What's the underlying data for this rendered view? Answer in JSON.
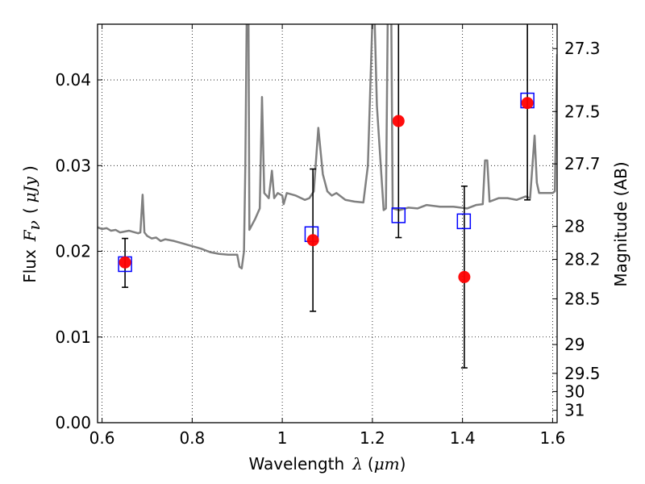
{
  "chart_data": {
    "type": "scatter",
    "xlabel": {
      "prefix": "Wavelength",
      "symbol": "λ",
      "open": "(",
      "unit": "μm",
      "close": ")"
    },
    "ylabel": {
      "prefix": "Flux",
      "symbol": "F",
      "subscript": "ν",
      "open": "(",
      "unit": "μJy",
      "close": ")"
    },
    "y2label": "Magnitude (AB)",
    "xlim": [
      0.59,
      1.61
    ],
    "ylim": [
      0.0,
      0.0465
    ],
    "grid": true,
    "x_ticks": [
      {
        "value": 0.6,
        "label": "0.6"
      },
      {
        "value": 0.8,
        "label": "0.8"
      },
      {
        "value": 1.0,
        "label": "1"
      },
      {
        "value": 1.2,
        "label": "1.2"
      },
      {
        "value": 1.4,
        "label": "1.4"
      },
      {
        "value": 1.6,
        "label": "1.6"
      }
    ],
    "y_ticks": [
      {
        "value": 0.0,
        "label": "0.00"
      },
      {
        "value": 0.01,
        "label": "0.01"
      },
      {
        "value": 0.02,
        "label": "0.02"
      },
      {
        "value": 0.03,
        "label": "0.03"
      },
      {
        "value": 0.04,
        "label": "0.04"
      }
    ],
    "y2_ticks": [
      {
        "mag": 27.3,
        "label": "27.3"
      },
      {
        "mag": 27.5,
        "label": "27.5"
      },
      {
        "mag": 27.7,
        "label": "27.7"
      },
      {
        "mag": 28.0,
        "label": "28"
      },
      {
        "mag": 28.2,
        "label": "28.2"
      },
      {
        "mag": 28.5,
        "label": "28.5"
      },
      {
        "mag": 29.0,
        "label": "29"
      },
      {
        "mag": 29.5,
        "label": "29.5"
      },
      {
        "mag": 30.0,
        "label": "30"
      },
      {
        "mag": 31.0,
        "label": "31"
      }
    ],
    "series": [
      {
        "name": "template spectrum",
        "kind": "line",
        "color": "#808080",
        "points": [
          [
            0.59,
            0.0228
          ],
          [
            0.6,
            0.0226
          ],
          [
            0.61,
            0.0227
          ],
          [
            0.62,
            0.0224
          ],
          [
            0.63,
            0.0225
          ],
          [
            0.64,
            0.0222
          ],
          [
            0.66,
            0.0224
          ],
          [
            0.68,
            0.0221
          ],
          [
            0.685,
            0.0222
          ],
          [
            0.69,
            0.0266
          ],
          [
            0.694,
            0.0222
          ],
          [
            0.7,
            0.0218
          ],
          [
            0.71,
            0.0215
          ],
          [
            0.72,
            0.0216
          ],
          [
            0.73,
            0.0212
          ],
          [
            0.74,
            0.0214
          ],
          [
            0.76,
            0.0212
          ],
          [
            0.78,
            0.0209
          ],
          [
            0.8,
            0.0206
          ],
          [
            0.82,
            0.0203
          ],
          [
            0.84,
            0.0199
          ],
          [
            0.86,
            0.0197
          ],
          [
            0.88,
            0.0196
          ],
          [
            0.9,
            0.0196
          ],
          [
            0.905,
            0.0182
          ],
          [
            0.91,
            0.018
          ],
          [
            0.915,
            0.02
          ],
          [
            0.918,
            0.03
          ],
          [
            0.921,
            0.047
          ],
          [
            0.925,
            0.047
          ],
          [
            0.927,
            0.0225
          ],
          [
            0.94,
            0.0238
          ],
          [
            0.95,
            0.025
          ],
          [
            0.955,
            0.038
          ],
          [
            0.96,
            0.0268
          ],
          [
            0.97,
            0.0262
          ],
          [
            0.977,
            0.0294
          ],
          [
            0.982,
            0.0262
          ],
          [
            0.99,
            0.0268
          ],
          [
            1.0,
            0.0265
          ],
          [
            1.003,
            0.0255
          ],
          [
            1.01,
            0.0268
          ],
          [
            1.03,
            0.0265
          ],
          [
            1.05,
            0.026
          ],
          [
            1.06,
            0.0262
          ],
          [
            1.07,
            0.027
          ],
          [
            1.08,
            0.0344
          ],
          [
            1.09,
            0.029
          ],
          [
            1.1,
            0.027
          ],
          [
            1.11,
            0.0265
          ],
          [
            1.12,
            0.0268
          ],
          [
            1.14,
            0.026
          ],
          [
            1.16,
            0.0258
          ],
          [
            1.18,
            0.0257
          ],
          [
            1.19,
            0.03
          ],
          [
            1.2,
            0.047
          ],
          [
            1.205,
            0.047
          ],
          [
            1.21,
            0.037
          ],
          [
            1.225,
            0.0248
          ],
          [
            1.23,
            0.025
          ],
          [
            1.234,
            0.047
          ],
          [
            1.242,
            0.047
          ],
          [
            1.245,
            0.025
          ],
          [
            1.26,
            0.0248
          ],
          [
            1.28,
            0.0251
          ],
          [
            1.3,
            0.025
          ],
          [
            1.32,
            0.0254
          ],
          [
            1.35,
            0.0252
          ],
          [
            1.38,
            0.0252
          ],
          [
            1.41,
            0.025
          ],
          [
            1.43,
            0.0254
          ],
          [
            1.445,
            0.0255
          ],
          [
            1.45,
            0.0306
          ],
          [
            1.455,
            0.0306
          ],
          [
            1.46,
            0.0258
          ],
          [
            1.48,
            0.0262
          ],
          [
            1.5,
            0.0262
          ],
          [
            1.52,
            0.026
          ],
          [
            1.54,
            0.0264
          ],
          [
            1.55,
            0.0262
          ],
          [
            1.56,
            0.0335
          ],
          [
            1.565,
            0.028
          ],
          [
            1.57,
            0.0268
          ],
          [
            1.6,
            0.0268
          ],
          [
            1.605,
            0.027
          ],
          [
            1.61,
            0.043
          ]
        ]
      },
      {
        "name": "observed flux",
        "kind": "points",
        "marker": "filled-circle",
        "color": "#ff0000",
        "points": [
          {
            "x": 0.651,
            "y": 0.0187,
            "yerr_low": 0.0158,
            "yerr_high": 0.0215
          },
          {
            "x": 1.068,
            "y": 0.0213,
            "yerr_low": 0.013,
            "yerr_high": 0.0296
          },
          {
            "x": 1.258,
            "y": 0.0352,
            "yerr_low": 0.0216,
            "yerr_high": 0.049
          },
          {
            "x": 1.404,
            "y": 0.017,
            "yerr_low": 0.0064,
            "yerr_high": 0.0276
          },
          {
            "x": 1.544,
            "y": 0.0373,
            "yerr_low": 0.026,
            "yerr_high": 0.049
          }
        ]
      },
      {
        "name": "model band flux",
        "kind": "points",
        "marker": "open-square",
        "color": "#0000ff",
        "points": [
          {
            "x": 0.651,
            "y": 0.0185
          },
          {
            "x": 1.065,
            "y": 0.022
          },
          {
            "x": 1.258,
            "y": 0.0242
          },
          {
            "x": 1.403,
            "y": 0.0235
          },
          {
            "x": 1.544,
            "y": 0.0376
          }
        ]
      }
    ]
  }
}
